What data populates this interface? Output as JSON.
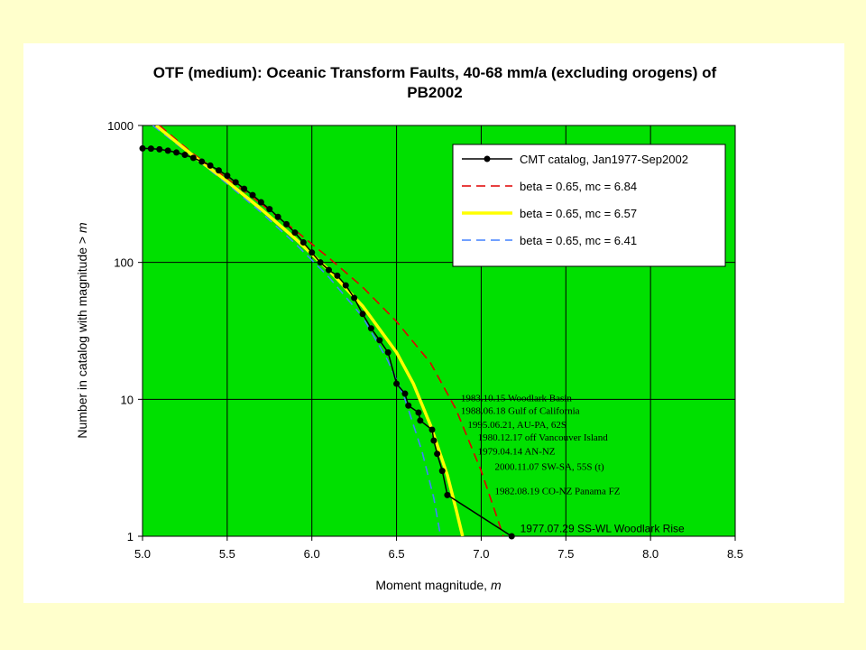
{
  "colors": {
    "page_background": "#FFFFCC",
    "slide_background": "#FFFFFF",
    "plot_background": "#00E000",
    "catalog": "#000000",
    "fit_mc_684": "#E00000",
    "fit_mc_657": "#FFFF00",
    "fit_mc_641": "#4080FF"
  },
  "chart_data": {
    "type": "line",
    "title_line1": "OTF (medium): Oceanic Transform Faults, 40-68 mm/a (excluding orogens) of",
    "title_line2": "PB2002",
    "xlabel_prefix": "Moment magnitude, ",
    "xlabel_var": "m",
    "ylabel_prefix": "Number in catalog with magnitude  >  ",
    "ylabel_var": "m",
    "xlim": [
      5.0,
      8.5
    ],
    "ylim": [
      1,
      1000
    ],
    "y_scale": "log",
    "x_ticks": [
      "5.0",
      "5.5",
      "6.0",
      "6.5",
      "7.0",
      "7.5",
      "8.0",
      "8.5"
    ],
    "y_ticks": [
      "1",
      "10",
      "100",
      "1000"
    ],
    "grid": true,
    "legend_position": "top-right",
    "series": [
      {
        "name": "CMT catalog, Jan1977-Sep2002",
        "style": "line-with-markers",
        "color": "#000000",
        "points": [
          [
            5.0,
            680
          ],
          [
            5.05,
            678
          ],
          [
            5.1,
            670
          ],
          [
            5.15,
            655
          ],
          [
            5.2,
            635
          ],
          [
            5.25,
            610
          ],
          [
            5.3,
            580
          ],
          [
            5.35,
            545
          ],
          [
            5.4,
            510
          ],
          [
            5.45,
            470
          ],
          [
            5.5,
            430
          ],
          [
            5.55,
            385
          ],
          [
            5.6,
            345
          ],
          [
            5.65,
            310
          ],
          [
            5.7,
            275
          ],
          [
            5.75,
            245
          ],
          [
            5.8,
            215
          ],
          [
            5.85,
            190
          ],
          [
            5.9,
            165
          ],
          [
            5.95,
            140
          ],
          [
            6.0,
            118
          ],
          [
            6.05,
            100
          ],
          [
            6.1,
            88
          ],
          [
            6.15,
            80
          ],
          [
            6.2,
            68
          ],
          [
            6.25,
            55
          ],
          [
            6.3,
            42
          ],
          [
            6.35,
            33
          ],
          [
            6.4,
            27
          ],
          [
            6.45,
            22
          ],
          [
            6.5,
            13
          ],
          [
            6.55,
            11
          ],
          [
            6.57,
            9
          ],
          [
            6.63,
            8
          ],
          [
            6.64,
            7
          ],
          [
            6.71,
            6
          ],
          [
            6.72,
            5
          ],
          [
            6.74,
            4
          ],
          [
            6.77,
            3
          ],
          [
            6.8,
            2
          ],
          [
            7.18,
            1
          ]
        ]
      },
      {
        "name": "beta = 0.65, mc = 6.84",
        "style": "dashed",
        "color": "#E00000",
        "points": [
          [
            5.1,
            1000
          ],
          [
            5.3,
            620
          ],
          [
            5.5,
            410
          ],
          [
            5.7,
            268
          ],
          [
            5.9,
            172
          ],
          [
            6.1,
            108
          ],
          [
            6.3,
            66
          ],
          [
            6.5,
            37
          ],
          [
            6.7,
            18.5
          ],
          [
            6.85,
            8.5
          ],
          [
            7.0,
            3.0
          ],
          [
            7.1,
            1.3
          ],
          [
            7.13,
            1
          ]
        ]
      },
      {
        "name": "beta = 0.65, mc = 6.57",
        "style": "solid",
        "color": "#FFFF00",
        "points": [
          [
            5.08,
            1000
          ],
          [
            5.3,
            600
          ],
          [
            5.5,
            390
          ],
          [
            5.7,
            245
          ],
          [
            5.9,
            150
          ],
          [
            6.1,
            88
          ],
          [
            6.3,
            48
          ],
          [
            6.5,
            22
          ],
          [
            6.6,
            13
          ],
          [
            6.7,
            6.5
          ],
          [
            6.8,
            2.8
          ],
          [
            6.85,
            1.6
          ],
          [
            6.89,
            1
          ]
        ]
      },
      {
        "name": "beta = 0.65, mc = 6.41",
        "style": "dashed",
        "color": "#4080FF",
        "points": [
          [
            5.06,
            1000
          ],
          [
            5.3,
            590
          ],
          [
            5.5,
            375
          ],
          [
            5.7,
            232
          ],
          [
            5.9,
            138
          ],
          [
            6.1,
            78
          ],
          [
            6.3,
            40
          ],
          [
            6.45,
            19
          ],
          [
            6.55,
            10
          ],
          [
            6.65,
            4.2
          ],
          [
            6.72,
            1.9
          ],
          [
            6.76,
            1
          ]
        ]
      }
    ],
    "annotations": [
      {
        "text": "1983.10.15 Woodlark Basin",
        "x": 6.88,
        "y": 9.7
      },
      {
        "text": "1988.06.18 Gulf of California",
        "x": 6.88,
        "y": 7.8
      },
      {
        "text": "1995.06.21, AU-PA, 62S",
        "x": 6.92,
        "y": 6.2
      },
      {
        "text": "1980.12.17 off Vancouver Island",
        "x": 6.98,
        "y": 5.0
      },
      {
        "text": "1979.04.14 AN-NZ",
        "x": 6.98,
        "y": 3.95
      },
      {
        "text": "2000.11.07 SW-SA, 55S (t)",
        "x": 7.08,
        "y": 3.05
      },
      {
        "text": "1982.08.19 CO-NZ Panama FZ",
        "x": 7.08,
        "y": 2.02
      },
      {
        "text": "1977.07.29 SS-WL Woodlark Rise",
        "x": 7.23,
        "y": 1.07
      }
    ]
  }
}
